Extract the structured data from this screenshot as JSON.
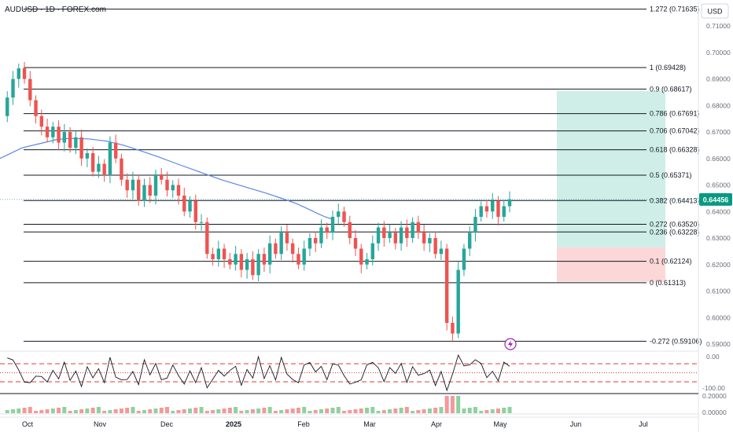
{
  "chart_data": {
    "type": "candlestick",
    "symbol": "AUDUSD · 1D · FOREX.com",
    "currency": "USD",
    "price_axis": {
      "min": 0.585,
      "max": 0.72,
      "ticks": [
        "0.71000",
        "0.70000",
        "0.69000",
        "0.68000",
        "0.67000",
        "0.66000",
        "0.65000",
        "0.64000",
        "0.63000",
        "0.62000",
        "0.61000",
        "0.60000",
        "0.59000"
      ]
    },
    "current_price": "0.64456",
    "time_axis": [
      "Oct",
      "Nov",
      "Dec",
      "2025",
      "Feb",
      "Mar",
      "Apr",
      "May",
      "Jun",
      "Jul"
    ],
    "fib_levels": [
      {
        "label": "1.272 (0.71635)",
        "value": 0.71635
      },
      {
        "label": "1 (0.69428)",
        "value": 0.69428
      },
      {
        "label": "0.9 (0.68617)",
        "value": 0.68617
      },
      {
        "label": "0.786 (0.67691)",
        "value": 0.67691
      },
      {
        "label": "0.706 (0.67042)",
        "value": 0.67042
      },
      {
        "label": "0.618 (0.66328)",
        "value": 0.66328
      },
      {
        "label": "0.5 (0.65371)",
        "value": 0.65371
      },
      {
        "label": "0.382 (0.64413)",
        "value": 0.64413
      },
      {
        "label": "0.272 (0.63520)",
        "value": 0.6352
      },
      {
        "label": "0.236 (0.63228)",
        "value": 0.63228
      },
      {
        "label": "0.1 (0.62124)",
        "value": 0.62124
      },
      {
        "label": "0 (0.61313)",
        "value": 0.61313
      },
      {
        "label": "-0.272 (0.59106)",
        "value": 0.59106
      }
    ],
    "position": {
      "entry": 0.6265,
      "target": 0.6855,
      "stop": 0.6135
    },
    "ma_path": [
      [
        0.0,
        0.66
      ],
      [
        0.05,
        0.664
      ],
      [
        0.1,
        0.666
      ],
      [
        0.13,
        0.6672
      ],
      [
        0.16,
        0.6676
      ],
      [
        0.2,
        0.6674
      ],
      [
        0.24,
        0.6666
      ],
      [
        0.28,
        0.665
      ],
      [
        0.32,
        0.6628
      ],
      [
        0.36,
        0.6605
      ],
      [
        0.4,
        0.658
      ],
      [
        0.45,
        0.655
      ],
      [
        0.5,
        0.652
      ],
      [
        0.55,
        0.6495
      ],
      [
        0.6,
        0.647
      ],
      [
        0.64,
        0.6448
      ],
      [
        0.67,
        0.643
      ],
      [
        0.69,
        0.6415
      ],
      [
        0.715,
        0.6395
      ],
      [
        0.735,
        0.638
      ],
      [
        0.75,
        0.6372
      ]
    ],
    "price_path": [
      0.676,
      0.683,
      0.69,
      0.694,
      0.69,
      0.682,
      0.676,
      0.672,
      0.668,
      0.672,
      0.666,
      0.67,
      0.664,
      0.668,
      0.66,
      0.662,
      0.655,
      0.658,
      0.654,
      0.666,
      0.66,
      0.652,
      0.648,
      0.652,
      0.644,
      0.65,
      0.646,
      0.654,
      0.652,
      0.648,
      0.65,
      0.646,
      0.64,
      0.644,
      0.636,
      0.636,
      0.624,
      0.622,
      0.626,
      0.622,
      0.62,
      0.624,
      0.618,
      0.622,
      0.616,
      0.624,
      0.62,
      0.628,
      0.624,
      0.632,
      0.628,
      0.624,
      0.62,
      0.626,
      0.63,
      0.628,
      0.634,
      0.632,
      0.638,
      0.64,
      0.636,
      0.63,
      0.626,
      0.62,
      0.622,
      0.628,
      0.634,
      0.63,
      0.632,
      0.628,
      0.634,
      0.63,
      0.636,
      0.632,
      0.628,
      0.63,
      0.624,
      0.626,
      0.598,
      0.594,
      0.618,
      0.626,
      0.632,
      0.638,
      0.642,
      0.64,
      0.644,
      0.638,
      0.642,
      0.6446
    ],
    "oscillator": {
      "top_value": "0.00",
      "bottom_value": "-100.00"
    },
    "volume": {
      "tick_label": "0.20000",
      "zero_label": "0.00000"
    }
  }
}
